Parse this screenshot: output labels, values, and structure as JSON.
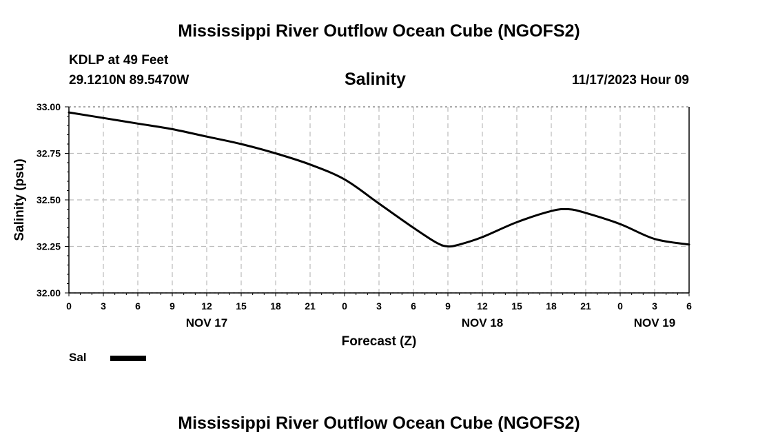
{
  "title": "Mississippi River Outflow Ocean Cube (NGOFS2)",
  "footer_title": "Mississippi River Outflow Ocean Cube (NGOFS2)",
  "station": {
    "name": "KDLP at 49 Feet",
    "coords": "29.1210N  89.5470W"
  },
  "plot_title": "Salinity",
  "timestamp": "11/17/2023 Hour 09",
  "legend": {
    "label": "Sal",
    "color": "#000000"
  },
  "chart_data": {
    "type": "line",
    "title": "Salinity",
    "xlabel": "Forecast (Z)",
    "ylabel": "Salinity (psu)",
    "xlim": [
      0,
      54
    ],
    "ylim": [
      32.0,
      33.0
    ],
    "x_ticks": [
      0,
      3,
      6,
      9,
      12,
      15,
      18,
      21,
      24,
      27,
      30,
      33,
      36,
      39,
      42,
      45,
      48,
      51,
      54
    ],
    "x_tick_labels": [
      "0",
      "3",
      "6",
      "9",
      "12",
      "15",
      "18",
      "21",
      "0",
      "3",
      "6",
      "9",
      "12",
      "15",
      "18",
      "21",
      "0",
      "3",
      "6"
    ],
    "date_labels": [
      {
        "x": 12,
        "label": "NOV 17"
      },
      {
        "x": 36,
        "label": "NOV 18"
      },
      {
        "x": 51,
        "label": "NOV 19"
      }
    ],
    "y_ticks": [
      32.0,
      32.25,
      32.5,
      32.75,
      33.0
    ],
    "y_tick_labels": [
      "32.00",
      "32.25",
      "32.50",
      "32.75",
      "33.00"
    ],
    "grid": true,
    "series": [
      {
        "name": "Sal",
        "x": [
          0,
          3,
          6,
          9,
          12,
          15,
          18,
          21,
          24,
          27,
          30,
          32,
          33,
          34,
          36,
          39,
          42,
          43.5,
          45,
          48,
          51,
          54
        ],
        "values": [
          32.97,
          32.94,
          32.91,
          32.88,
          32.84,
          32.8,
          32.75,
          32.69,
          32.61,
          32.48,
          32.35,
          32.27,
          32.25,
          32.26,
          32.3,
          32.38,
          32.44,
          32.45,
          32.43,
          32.37,
          32.29,
          32.26
        ]
      }
    ]
  }
}
